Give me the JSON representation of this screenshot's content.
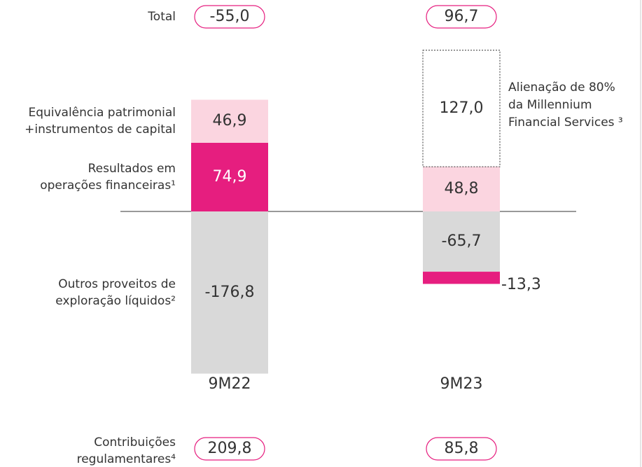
{
  "chart_data": {
    "type": "bar",
    "stacked": true,
    "categories": [
      "9M22",
      "9M23"
    ],
    "series": [
      {
        "name": "Outros proveitos de\nexploração líquidos²",
        "color": "#d9d9d9",
        "values": [
          -176.8,
          -65.7
        ],
        "value_labels": [
          "-176,8",
          "-65,7"
        ]
      },
      {
        "name": "Resultados em\noperações financeiras¹",
        "color": "#e61e7f",
        "values": [
          74.9,
          -13.3
        ],
        "value_labels": [
          "74,9",
          "-13,3"
        ]
      },
      {
        "name": "Equivalência patrimonial\n+instrumentos de capital",
        "color": "#fbd5e0",
        "values": [
          46.9,
          48.8
        ],
        "value_labels": [
          "46,9",
          "48,8"
        ]
      },
      {
        "name": "Alienação de 80%\nda Millennium\nFinancial Services ³",
        "color": "none",
        "dashed": true,
        "values": [
          null,
          127.0
        ],
        "value_labels": [
          null,
          "127,0"
        ]
      }
    ],
    "totals": {
      "label": "Total",
      "values": [
        -55.0,
        96.7
      ],
      "value_labels": [
        "-55,0",
        "96,7"
      ]
    },
    "contributions": {
      "label": "Contribuições\nregulamentares⁴",
      "values": [
        209.8,
        85.8
      ],
      "value_labels": [
        "209,8",
        "85,8"
      ]
    }
  }
}
